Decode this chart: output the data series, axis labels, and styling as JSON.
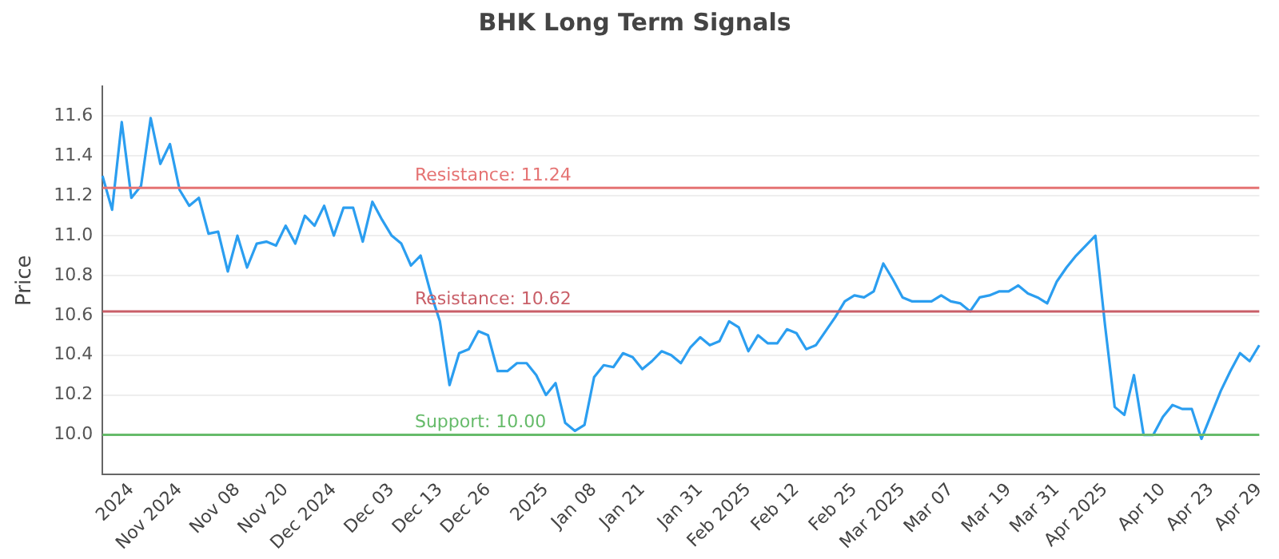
{
  "chart_data": {
    "type": "line",
    "title": "BHK Long Term Signals",
    "ylabel": "Price",
    "categories": [
      null,
      null,
      null,
      "2024",
      null,
      null,
      null,
      null,
      "Nov 2024",
      null,
      null,
      null,
      null,
      null,
      "Nov 08",
      null,
      null,
      null,
      null,
      "Nov 20",
      null,
      null,
      null,
      null,
      "Dec 2024",
      null,
      null,
      null,
      null,
      null,
      "Dec 03",
      null,
      null,
      null,
      null,
      "Dec 13",
      null,
      null,
      null,
      null,
      "Dec 26",
      null,
      null,
      null,
      null,
      null,
      "2025",
      null,
      null,
      null,
      null,
      "Jan 08",
      null,
      null,
      null,
      null,
      "Jan 21",
      null,
      null,
      null,
      null,
      null,
      "Jan 31",
      null,
      null,
      null,
      null,
      "Feb 2025",
      null,
      null,
      null,
      null,
      "Feb 12",
      null,
      null,
      null,
      null,
      null,
      "Feb 25",
      null,
      null,
      null,
      null,
      "Mar 2025",
      null,
      null,
      null,
      null,
      "Mar 07",
      null,
      null,
      null,
      null,
      null,
      "Mar 19",
      null,
      null,
      null,
      null,
      "Mar 31",
      null,
      null,
      null,
      null,
      "Apr 2025",
      null,
      null,
      null,
      null,
      null,
      "Apr 10",
      null,
      null,
      null,
      null,
      "Apr 23",
      null,
      null,
      null,
      null,
      "Apr 29"
    ],
    "series": [
      {
        "color": "#2b9ef0",
        "values": [
          11.3,
          11.13,
          11.57,
          11.19,
          11.25,
          11.59,
          11.36,
          11.46,
          11.23,
          11.15,
          11.19,
          11.01,
          11.02,
          10.82,
          11.0,
          10.84,
          10.96,
          10.97,
          10.95,
          11.05,
          10.96,
          11.1,
          11.05,
          11.15,
          11.0,
          11.14,
          11.14,
          10.97,
          11.17,
          11.08,
          11.0,
          10.96,
          10.85,
          10.9,
          10.72,
          10.57,
          10.25,
          10.41,
          10.43,
          10.52,
          10.5,
          10.32,
          10.32,
          10.36,
          10.36,
          10.3,
          10.2,
          10.26,
          10.06,
          10.02,
          10.05,
          10.29,
          10.35,
          10.34,
          10.41,
          10.39,
          10.33,
          10.37,
          10.42,
          10.4,
          10.36,
          10.44,
          10.49,
          10.45,
          10.47,
          10.57,
          10.54,
          10.42,
          10.5,
          10.46,
          10.46,
          10.53,
          10.51,
          10.43,
          10.45,
          10.52,
          10.59,
          10.67,
          10.7,
          10.69,
          10.72,
          10.86,
          10.78,
          10.69,
          10.67,
          10.67,
          10.67,
          10.7,
          10.67,
          10.66,
          10.62,
          10.69,
          10.7,
          10.72,
          10.72,
          10.75,
          10.71,
          10.69,
          10.66,
          10.77,
          10.84,
          10.9,
          10.95,
          11.0,
          10.55,
          10.14,
          10.1,
          10.3,
          10.0,
          10.0,
          10.09,
          10.15,
          10.13,
          10.13,
          9.98,
          10.1,
          10.22,
          10.32,
          10.41,
          10.37,
          10.45
        ]
      }
    ],
    "ylim": [
      9.8,
      11.75
    ],
    "yticks": [
      {
        "value": 10,
        "label": "10.0"
      },
      {
        "value": 10.2,
        "label": "10.2"
      },
      {
        "value": 10.4,
        "label": "10.4"
      },
      {
        "value": 10.6,
        "label": "10.6"
      },
      {
        "value": 10.8,
        "label": "10.8"
      },
      {
        "value": 11,
        "label": "11.0"
      },
      {
        "value": 11.2,
        "label": "11.2"
      },
      {
        "value": 11.4,
        "label": "11.4"
      },
      {
        "value": 11.6,
        "label": "11.6"
      }
    ],
    "ref_lines": [
      {
        "axis": "y",
        "value": 11.24,
        "label": "Resistance: 11.24",
        "color": "#e57373"
      },
      {
        "axis": "y",
        "value": 10.62,
        "label": "Resistance: 10.62",
        "color": "#c95f68"
      },
      {
        "axis": "y",
        "value": 10.0,
        "label": "Support: 10.00",
        "color": "#66bb6a"
      }
    ],
    "grid": "y",
    "legend": false,
    "marker": "none",
    "line_style": "solid"
  }
}
